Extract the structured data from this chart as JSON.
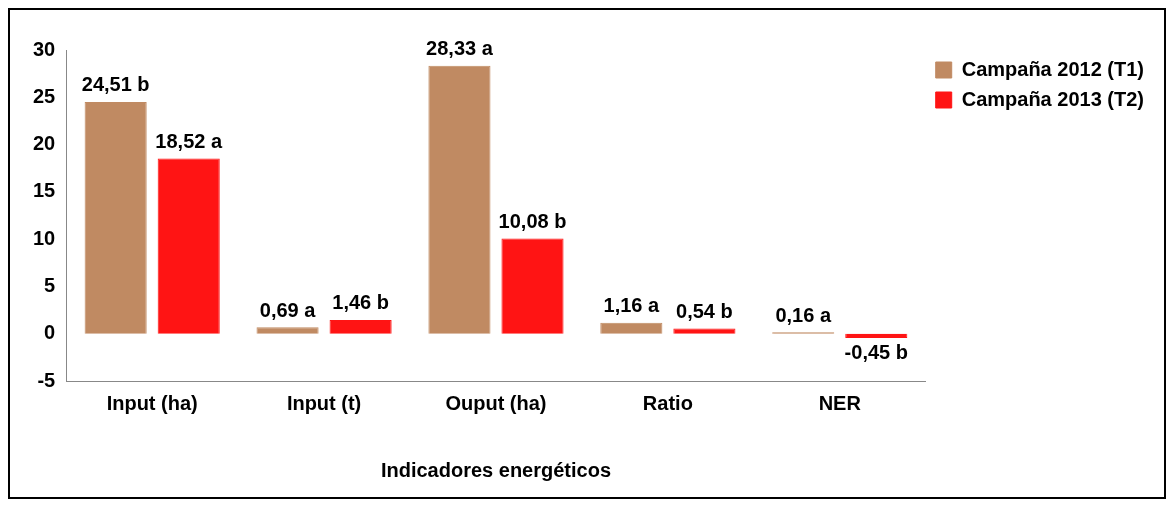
{
  "chart_data": {
    "type": "bar",
    "xlabel": "Indicadores energéticos",
    "categories": [
      "Input (ha)",
      "Input (t)",
      "Ouput (ha)",
      "Ratio",
      "NER"
    ],
    "series": [
      {
        "name": "Campaña 2012 (T1)",
        "color": "#c08a62",
        "values": [
          24.51,
          0.69,
          28.33,
          1.16,
          0.16
        ],
        "value_labels": [
          "24,51 b",
          "0,69 a",
          "28,33 a",
          "1,16 a",
          "0,16 a"
        ]
      },
      {
        "name": "Campaña 2013 (T2)",
        "color": "#ff1414",
        "values": [
          18.52,
          1.46,
          10.08,
          0.54,
          -0.45
        ],
        "value_labels": [
          "18,52 a",
          "1,46 b",
          "10,08 b",
          "0,54 b",
          "-0,45 b"
        ]
      }
    ],
    "ylim": [
      -5,
      30
    ],
    "yticks": [
      -5,
      0,
      5,
      10,
      15,
      20,
      25,
      30
    ],
    "grid": false,
    "legend": "right"
  }
}
